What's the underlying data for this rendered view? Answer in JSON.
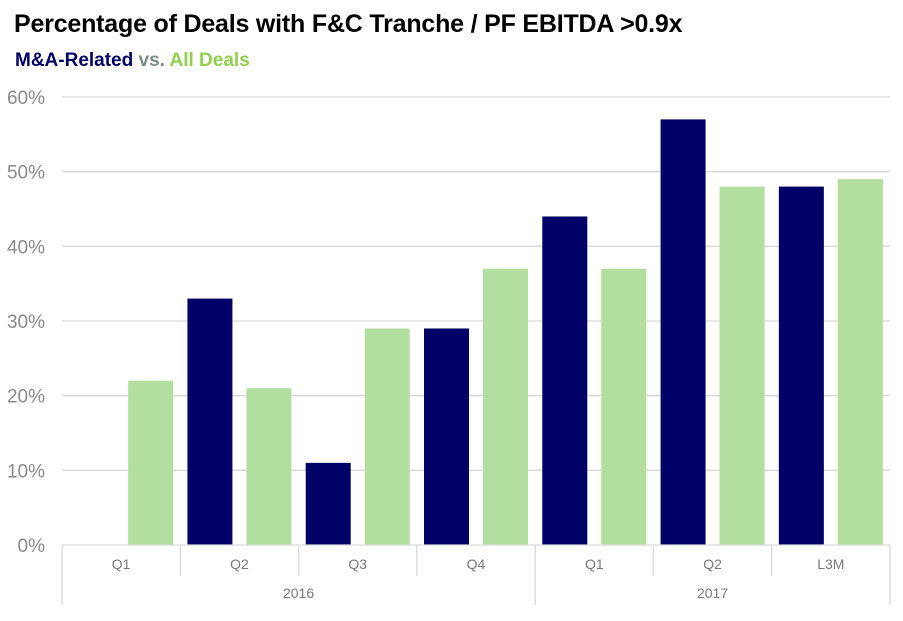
{
  "header": {
    "title": "Percentage of Deals with F&C Tranche / PF EBITDA >0.9x",
    "subtitle_part1": "M&A-Related",
    "subtitle_sep": " vs. ",
    "subtitle_part2": "All Deals"
  },
  "colors": {
    "ma_related": "#000066",
    "all_deals": "#b2dfa0",
    "separator": "#7f8a8a",
    "grid": "#d9d9d9"
  },
  "chart_data": {
    "type": "bar",
    "categories": [
      "Q1",
      "Q2",
      "Q3",
      "Q4",
      "Q1",
      "Q2",
      "L3M"
    ],
    "groups": [
      {
        "label": "2016",
        "span": 4
      },
      {
        "label": "2017",
        "span": 3
      }
    ],
    "series": [
      {
        "name": "M&A-Related",
        "values": [
          null,
          33,
          11,
          29,
          44,
          57,
          48
        ]
      },
      {
        "name": "All Deals",
        "values": [
          22,
          21,
          29,
          37,
          37,
          48,
          49
        ]
      }
    ],
    "bar_order": "M&A-Related first within each category, then All Deals (Q1 2016 has only All Deals)",
    "ylim": [
      0,
      60
    ],
    "yticks": [
      "0%",
      "10%",
      "20%",
      "30%",
      "40%",
      "50%",
      "60%"
    ],
    "grid": true,
    "xlabel": "",
    "ylabel": ""
  }
}
